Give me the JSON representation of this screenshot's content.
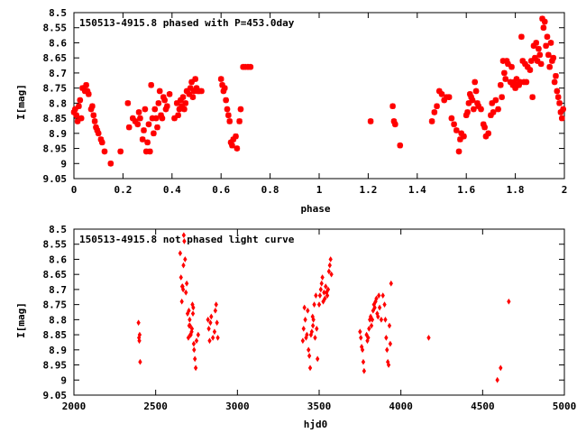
{
  "colors": {
    "points": "#ff0000",
    "axes": "#000000",
    "background": "#ffffff"
  },
  "chart_data": [
    {
      "type": "scatter",
      "title": "150513-4915.8 phased with P=453.0day",
      "xlabel": "phase",
      "ylabel": "I[mag]",
      "xlim": [
        0,
        2
      ],
      "ylim": [
        9.05,
        8.5
      ],
      "y_reversed": true,
      "grid": false,
      "marker": "star",
      "x_ticks": [
        "0",
        "0.2",
        "0.4",
        "0.6",
        "0.8",
        "1",
        "1.2",
        "1.4",
        "1.6",
        "1.8",
        "2"
      ],
      "y_ticks": [
        "8.5",
        "8.55",
        "8.6",
        "8.65",
        "8.7",
        "8.75",
        "8.8",
        "8.85",
        "8.9",
        "8.95",
        "9",
        "9.05"
      ],
      "points": [
        [
          0.0,
          8.83
        ],
        [
          0.005,
          8.82
        ],
        [
          0.01,
          8.84
        ],
        [
          0.015,
          8.86
        ],
        [
          0.02,
          8.81
        ],
        [
          0.025,
          8.79
        ],
        [
          0.03,
          8.85
        ],
        [
          0.035,
          8.75
        ],
        [
          0.04,
          8.75
        ],
        [
          0.045,
          8.76
        ],
        [
          0.05,
          8.74
        ],
        [
          0.055,
          8.76
        ],
        [
          0.06,
          8.77
        ],
        [
          0.07,
          8.82
        ],
        [
          0.075,
          8.81
        ],
        [
          0.08,
          8.84
        ],
        [
          0.085,
          8.86
        ],
        [
          0.09,
          8.88
        ],
        [
          0.095,
          8.89
        ],
        [
          0.1,
          8.9
        ],
        [
          0.11,
          8.92
        ],
        [
          0.115,
          8.93
        ],
        [
          0.125,
          8.96
        ],
        [
          0.15,
          9.0
        ],
        [
          0.19,
          8.96
        ],
        [
          0.22,
          8.8
        ],
        [
          0.225,
          8.88
        ],
        [
          0.24,
          8.85
        ],
        [
          0.25,
          8.86
        ],
        [
          0.26,
          8.87
        ],
        [
          0.265,
          8.83
        ],
        [
          0.27,
          8.85
        ],
        [
          0.28,
          8.92
        ],
        [
          0.285,
          8.89
        ],
        [
          0.29,
          8.82
        ],
        [
          0.295,
          8.96
        ],
        [
          0.3,
          8.93
        ],
        [
          0.305,
          8.87
        ],
        [
          0.31,
          8.96
        ],
        [
          0.315,
          8.74
        ],
        [
          0.32,
          8.85
        ],
        [
          0.325,
          8.9
        ],
        [
          0.33,
          8.82
        ],
        [
          0.335,
          8.85
        ],
        [
          0.34,
          8.88
        ],
        [
          0.345,
          8.8
        ],
        [
          0.35,
          8.76
        ],
        [
          0.355,
          8.84
        ],
        [
          0.36,
          8.85
        ],
        [
          0.365,
          8.78
        ],
        [
          0.37,
          8.79
        ],
        [
          0.375,
          8.82
        ],
        [
          0.38,
          8.81
        ],
        [
          0.39,
          8.77
        ],
        [
          0.41,
          8.85
        ],
        [
          0.42,
          8.8
        ],
        [
          0.425,
          8.84
        ],
        [
          0.43,
          8.82
        ],
        [
          0.435,
          8.79
        ],
        [
          0.44,
          8.81
        ],
        [
          0.445,
          8.78
        ],
        [
          0.45,
          8.82
        ],
        [
          0.455,
          8.8
        ],
        [
          0.46,
          8.76
        ],
        [
          0.47,
          8.77
        ],
        [
          0.475,
          8.75
        ],
        [
          0.48,
          8.73
        ],
        [
          0.485,
          8.78
        ],
        [
          0.49,
          8.76
        ],
        [
          0.495,
          8.72
        ],
        [
          0.5,
          8.75
        ],
        [
          0.505,
          8.76
        ],
        [
          0.51,
          8.76
        ],
        [
          0.52,
          8.76
        ],
        [
          0.6,
          8.72
        ],
        [
          0.605,
          8.74
        ],
        [
          0.61,
          8.76
        ],
        [
          0.615,
          8.75
        ],
        [
          0.62,
          8.79
        ],
        [
          0.625,
          8.82
        ],
        [
          0.63,
          8.84
        ],
        [
          0.635,
          8.86
        ],
        [
          0.64,
          8.93
        ],
        [
          0.645,
          8.94
        ],
        [
          0.65,
          8.92
        ],
        [
          0.66,
          8.91
        ],
        [
          0.665,
          8.95
        ],
        [
          0.675,
          8.86
        ],
        [
          0.68,
          8.82
        ],
        [
          0.69,
          8.68
        ],
        [
          0.7,
          8.68
        ],
        [
          0.71,
          8.68
        ],
        [
          0.72,
          8.68
        ],
        [
          1.21,
          8.86
        ],
        [
          1.3,
          8.81
        ],
        [
          1.305,
          8.86
        ],
        [
          1.31,
          8.87
        ],
        [
          1.33,
          8.94
        ],
        [
          1.46,
          8.86
        ],
        [
          1.47,
          8.83
        ],
        [
          1.48,
          8.81
        ],
        [
          1.49,
          8.76
        ],
        [
          1.5,
          8.77
        ],
        [
          1.51,
          8.79
        ],
        [
          1.52,
          8.78
        ],
        [
          1.53,
          8.78
        ],
        [
          1.54,
          8.85
        ],
        [
          1.55,
          8.87
        ],
        [
          1.56,
          8.89
        ],
        [
          1.57,
          8.96
        ],
        [
          1.575,
          8.92
        ],
        [
          1.58,
          8.9
        ],
        [
          1.59,
          8.91
        ],
        [
          1.6,
          8.84
        ],
        [
          1.605,
          8.83
        ],
        [
          1.61,
          8.8
        ],
        [
          1.615,
          8.77
        ],
        [
          1.62,
          8.78
        ],
        [
          1.625,
          8.79
        ],
        [
          1.63,
          8.82
        ],
        [
          1.635,
          8.73
        ],
        [
          1.64,
          8.76
        ],
        [
          1.645,
          8.8
        ],
        [
          1.65,
          8.81
        ],
        [
          1.66,
          8.82
        ],
        [
          1.67,
          8.87
        ],
        [
          1.675,
          8.88
        ],
        [
          1.68,
          8.91
        ],
        [
          1.69,
          8.9
        ],
        [
          1.7,
          8.84
        ],
        [
          1.705,
          8.8
        ],
        [
          1.71,
          8.83
        ],
        [
          1.72,
          8.79
        ],
        [
          1.73,
          8.82
        ],
        [
          1.74,
          8.74
        ],
        [
          1.745,
          8.78
        ],
        [
          1.75,
          8.66
        ],
        [
          1.755,
          8.7
        ],
        [
          1.76,
          8.72
        ],
        [
          1.765,
          8.66
        ],
        [
          1.77,
          8.67
        ],
        [
          1.78,
          8.73
        ],
        [
          1.785,
          8.68
        ],
        [
          1.79,
          8.74
        ],
        [
          1.795,
          8.73
        ],
        [
          1.8,
          8.75
        ],
        [
          1.805,
          8.72
        ],
        [
          1.81,
          8.74
        ],
        [
          1.815,
          8.74
        ],
        [
          1.82,
          8.73
        ],
        [
          1.825,
          8.58
        ],
        [
          1.83,
          8.66
        ],
        [
          1.835,
          8.73
        ],
        [
          1.84,
          8.67
        ],
        [
          1.845,
          8.73
        ],
        [
          1.85,
          8.68
        ],
        [
          1.86,
          8.69
        ],
        [
          1.865,
          8.66
        ],
        [
          1.87,
          8.78
        ],
        [
          1.875,
          8.61
        ],
        [
          1.88,
          8.65
        ],
        [
          1.885,
          8.6
        ],
        [
          1.89,
          8.66
        ],
        [
          1.895,
          8.62
        ],
        [
          1.9,
          8.64
        ],
        [
          1.905,
          8.67
        ],
        [
          1.91,
          8.52
        ],
        [
          1.915,
          8.55
        ],
        [
          1.92,
          8.53
        ],
        [
          1.925,
          8.61
        ],
        [
          1.93,
          8.58
        ],
        [
          1.935,
          8.64
        ],
        [
          1.94,
          8.68
        ],
        [
          1.945,
          8.6
        ],
        [
          1.95,
          8.66
        ],
        [
          1.955,
          8.65
        ],
        [
          1.96,
          8.73
        ],
        [
          1.965,
          8.71
        ],
        [
          1.97,
          8.76
        ],
        [
          1.975,
          8.78
        ],
        [
          1.98,
          8.8
        ],
        [
          1.985,
          8.83
        ],
        [
          1.99,
          8.85
        ],
        [
          1.995,
          8.82
        ]
      ]
    },
    {
      "type": "scatter",
      "title": "150513-4915.8 not phased light curve",
      "xlabel": "hjd0",
      "ylabel": "I[mag]",
      "xlim": [
        2000,
        5000
      ],
      "ylim": [
        9.05,
        8.5
      ],
      "y_reversed": true,
      "grid": false,
      "marker": "diamond",
      "x_ticks": [
        "2000",
        "2500",
        "3000",
        "3500",
        "4000",
        "4500",
        "5000"
      ],
      "y_ticks": [
        "8.5",
        "8.55",
        "8.6",
        "8.65",
        "8.7",
        "8.75",
        "8.8",
        "8.85",
        "8.9",
        "8.95",
        "9",
        "9.05"
      ],
      "points": [
        [
          2395,
          8.81
        ],
        [
          2398,
          8.86
        ],
        [
          2400,
          8.87
        ],
        [
          2402,
          8.85
        ],
        [
          2405,
          8.94
        ],
        [
          2650,
          8.58
        ],
        [
          2655,
          8.66
        ],
        [
          2660,
          8.74
        ],
        [
          2662,
          8.69
        ],
        [
          2665,
          8.69
        ],
        [
          2668,
          8.7
        ],
        [
          2670,
          8.62
        ],
        [
          2672,
          8.52
        ],
        [
          2675,
          8.54
        ],
        [
          2680,
          8.6
        ],
        [
          2685,
          8.71
        ],
        [
          2690,
          8.68
        ],
        [
          2695,
          8.78
        ],
        [
          2700,
          8.86
        ],
        [
          2703,
          8.77
        ],
        [
          2705,
          8.82
        ],
        [
          2708,
          8.8
        ],
        [
          2710,
          8.82
        ],
        [
          2712,
          8.85
        ],
        [
          2715,
          8.85
        ],
        [
          2720,
          8.84
        ],
        [
          2722,
          8.83
        ],
        [
          2725,
          8.75
        ],
        [
          2728,
          8.78
        ],
        [
          2730,
          8.76
        ],
        [
          2733,
          8.88
        ],
        [
          2735,
          8.9
        ],
        [
          2740,
          8.93
        ],
        [
          2745,
          8.96
        ],
        [
          2750,
          8.87
        ],
        [
          2760,
          8.85
        ],
        [
          2820,
          8.8
        ],
        [
          2825,
          8.83
        ],
        [
          2830,
          8.87
        ],
        [
          2835,
          8.81
        ],
        [
          2840,
          8.79
        ],
        [
          2850,
          8.86
        ],
        [
          2860,
          8.84
        ],
        [
          2865,
          8.77
        ],
        [
          2870,
          8.75
        ],
        [
          2875,
          8.81
        ],
        [
          2880,
          8.86
        ],
        [
          3400,
          8.87
        ],
        [
          3405,
          8.83
        ],
        [
          3410,
          8.76
        ],
        [
          3415,
          8.8
        ],
        [
          3420,
          8.86
        ],
        [
          3425,
          8.85
        ],
        [
          3430,
          8.77
        ],
        [
          3435,
          8.9
        ],
        [
          3440,
          8.92
        ],
        [
          3445,
          8.96
        ],
        [
          3450,
          8.85
        ],
        [
          3455,
          8.84
        ],
        [
          3460,
          8.79
        ],
        [
          3462,
          8.82
        ],
        [
          3465,
          8.8
        ],
        [
          3470,
          8.75
        ],
        [
          3475,
          8.86
        ],
        [
          3480,
          8.72
        ],
        [
          3485,
          8.83
        ],
        [
          3490,
          8.93
        ],
        [
          3500,
          8.75
        ],
        [
          3505,
          8.72
        ],
        [
          3510,
          8.7
        ],
        [
          3515,
          8.68
        ],
        [
          3520,
          8.66
        ],
        [
          3525,
          8.74
        ],
        [
          3530,
          8.71
        ],
        [
          3535,
          8.73
        ],
        [
          3540,
          8.69
        ],
        [
          3545,
          8.71
        ],
        [
          3550,
          8.72
        ],
        [
          3555,
          8.7
        ],
        [
          3560,
          8.64
        ],
        [
          3565,
          8.62
        ],
        [
          3570,
          8.6
        ],
        [
          3575,
          8.65
        ],
        [
          3750,
          8.84
        ],
        [
          3755,
          8.86
        ],
        [
          3760,
          8.89
        ],
        [
          3765,
          8.9
        ],
        [
          3770,
          8.94
        ],
        [
          3775,
          8.97
        ],
        [
          3790,
          8.85
        ],
        [
          3795,
          8.87
        ],
        [
          3800,
          8.86
        ],
        [
          3805,
          8.83
        ],
        [
          3810,
          8.8
        ],
        [
          3815,
          8.79
        ],
        [
          3820,
          8.82
        ],
        [
          3825,
          8.8
        ],
        [
          3830,
          8.77
        ],
        [
          3835,
          8.75
        ],
        [
          3840,
          8.76
        ],
        [
          3845,
          8.74
        ],
        [
          3850,
          8.73
        ],
        [
          3855,
          8.78
        ],
        [
          3860,
          8.79
        ],
        [
          3865,
          8.72
        ],
        [
          3870,
          8.76
        ],
        [
          3880,
          8.8
        ],
        [
          3890,
          8.72
        ],
        [
          3900,
          8.75
        ],
        [
          3905,
          8.8
        ],
        [
          3910,
          8.86
        ],
        [
          3915,
          8.9
        ],
        [
          3920,
          8.94
        ],
        [
          3925,
          8.95
        ],
        [
          3930,
          8.82
        ],
        [
          3935,
          8.88
        ],
        [
          3940,
          8.68
        ],
        [
          4170,
          8.86
        ],
        [
          4590,
          9.0
        ],
        [
          4610,
          8.96
        ],
        [
          4660,
          8.74
        ]
      ]
    }
  ]
}
